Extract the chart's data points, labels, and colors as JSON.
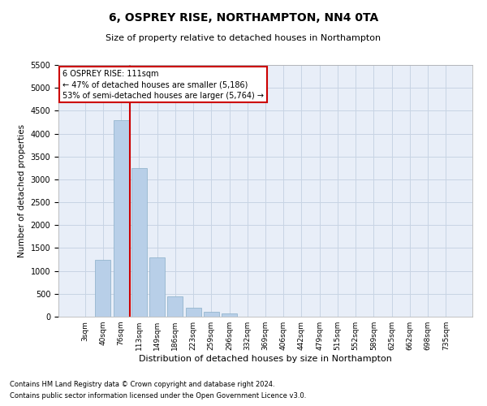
{
  "title": "6, OSPREY RISE, NORTHAMPTON, NN4 0TA",
  "subtitle": "Size of property relative to detached houses in Northampton",
  "xlabel": "Distribution of detached houses by size in Northampton",
  "ylabel": "Number of detached properties",
  "footnote1": "Contains HM Land Registry data © Crown copyright and database right 2024.",
  "footnote2": "Contains public sector information licensed under the Open Government Licence v3.0.",
  "categories": [
    "3sqm",
    "40sqm",
    "76sqm",
    "113sqm",
    "149sqm",
    "186sqm",
    "223sqm",
    "259sqm",
    "296sqm",
    "332sqm",
    "369sqm",
    "406sqm",
    "442sqm",
    "479sqm",
    "515sqm",
    "552sqm",
    "589sqm",
    "625sqm",
    "662sqm",
    "698sqm",
    "735sqm"
  ],
  "values": [
    0,
    1250,
    4300,
    3250,
    1300,
    450,
    200,
    100,
    70,
    0,
    0,
    0,
    0,
    0,
    0,
    0,
    0,
    0,
    0,
    0,
    0
  ],
  "bar_color": "#b8cfe8",
  "bar_edge_color": "#8aaec8",
  "vline_x": 2.5,
  "vline_color": "#cc0000",
  "annotation_title": "6 OSPREY RISE: 111sqm",
  "annotation_line1": "← 47% of detached houses are smaller (5,186)",
  "annotation_line2": "53% of semi-detached houses are larger (5,764) →",
  "ylim": [
    0,
    5500
  ],
  "yticks": [
    0,
    500,
    1000,
    1500,
    2000,
    2500,
    3000,
    3500,
    4000,
    4500,
    5000,
    5500
  ],
  "grid_color": "#c8d4e4",
  "bg_color": "#e8eef8"
}
